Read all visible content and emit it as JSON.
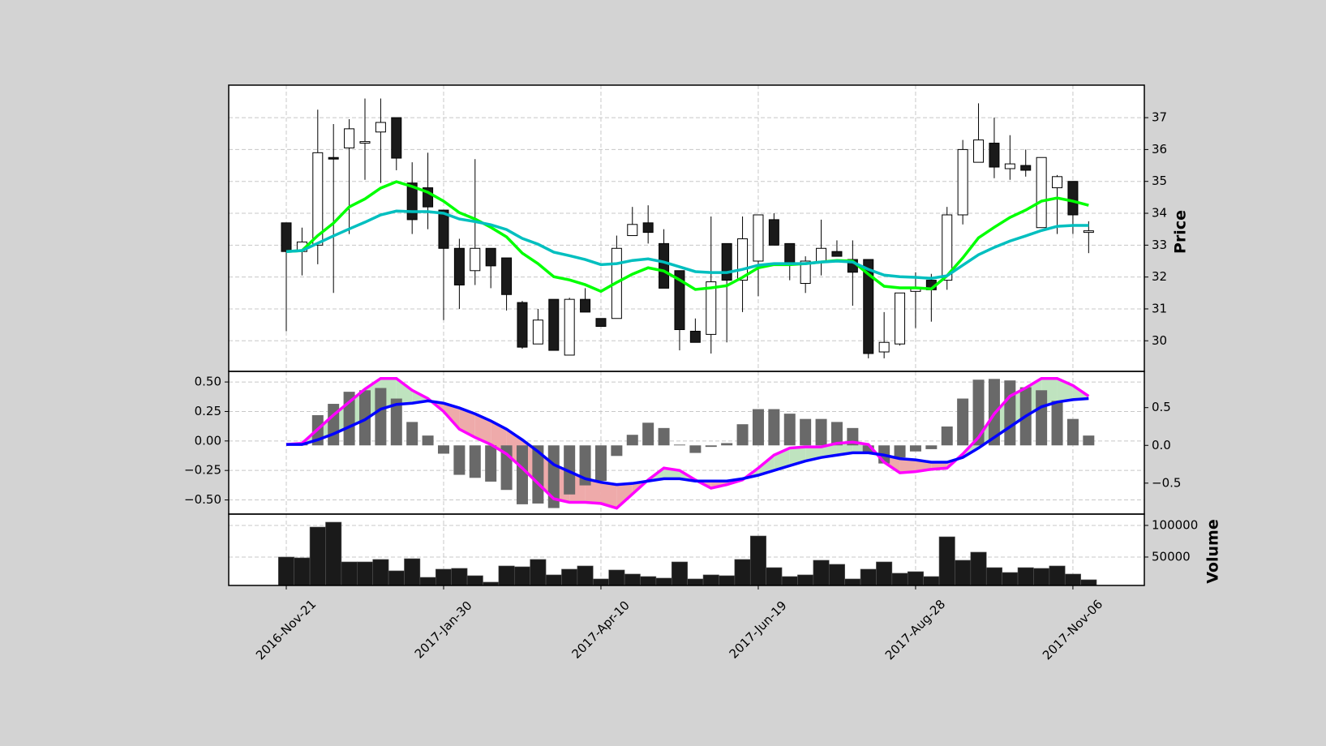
{
  "chart_data": [
    {
      "type": "candlestick",
      "ylabel": "Price",
      "open": [
        33.7,
        32.8,
        33.0,
        35.75,
        36.05,
        36.2,
        36.55,
        37.0,
        34.95,
        34.8,
        34.1,
        32.9,
        32.2,
        32.9,
        32.6,
        31.2,
        29.9,
        31.3,
        29.55,
        31.3,
        30.7,
        30.7,
        33.3,
        33.7,
        33.05,
        32.2,
        30.3,
        30.2,
        33.05,
        31.9,
        32.5,
        33.8,
        33.05,
        31.8,
        32.45,
        32.8,
        32.55,
        32.55,
        29.65,
        29.9,
        31.55,
        31.9,
        31.9,
        33.95,
        35.6,
        36.2,
        35.4,
        35.5,
        33.55,
        34.8,
        35.0,
        33.4
      ],
      "high": [
        33.7,
        33.55,
        37.25,
        36.8,
        36.95,
        37.6,
        37.6,
        37.0,
        35.6,
        35.9,
        34.1,
        33.2,
        35.7,
        32.9,
        32.6,
        31.25,
        31.0,
        31.3,
        31.35,
        31.65,
        30.7,
        33.3,
        34.2,
        34.25,
        33.5,
        32.2,
        30.7,
        33.9,
        33.05,
        33.9,
        33.95,
        34.0,
        33.05,
        32.65,
        33.8,
        33.15,
        33.15,
        32.55,
        30.9,
        31.5,
        32.15,
        32.1,
        34.2,
        36.3,
        37.45,
        37.0,
        36.45,
        36.0,
        35.75,
        35.2,
        35.0,
        33.75
      ],
      "low": [
        30.3,
        32.05,
        32.4,
        31.5,
        33.35,
        35.05,
        34.95,
        35.35,
        33.35,
        33.5,
        30.65,
        31.0,
        31.75,
        31.65,
        30.95,
        29.75,
        29.9,
        29.7,
        29.55,
        30.9,
        30.45,
        30.7,
        33.3,
        33.05,
        31.65,
        29.7,
        29.95,
        29.6,
        29.95,
        30.9,
        31.4,
        33.0,
        31.9,
        31.5,
        32.05,
        32.65,
        31.1,
        29.45,
        29.45,
        29.85,
        30.4,
        30.6,
        31.6,
        33.65,
        35.6,
        35.1,
        35.05,
        35.15,
        33.55,
        33.35,
        33.35,
        32.75
      ],
      "close": [
        32.8,
        33.1,
        35.9,
        35.7,
        36.65,
        36.25,
        36.85,
        35.73,
        33.8,
        34.2,
        32.9,
        31.75,
        32.9,
        32.35,
        31.45,
        29.8,
        30.65,
        29.7,
        31.3,
        30.9,
        30.45,
        32.9,
        33.65,
        33.4,
        31.65,
        30.35,
        29.95,
        31.85,
        31.9,
        33.2,
        33.95,
        33.0,
        32.45,
        32.5,
        32.9,
        32.65,
        32.15,
        29.6,
        29.95,
        31.5,
        31.65,
        31.6,
        33.95,
        36.0,
        36.3,
        35.45,
        35.55,
        35.35,
        35.75,
        35.15,
        33.95,
        33.45
      ],
      "up_color": "#ffffff",
      "down_color": "#1a1a1a",
      "moving_averages": [
        {
          "color": "#00ff00",
          "values": [
            32.8,
            32.83,
            33.3,
            33.69,
            34.2,
            34.45,
            34.79,
            34.99,
            34.84,
            34.66,
            34.38,
            34.02,
            33.82,
            33.56,
            33.26,
            32.75,
            32.42,
            32.01,
            31.91,
            31.76,
            31.55,
            31.83,
            32.09,
            32.29,
            32.19,
            31.91,
            31.61,
            31.66,
            31.73,
            31.99,
            32.29,
            32.39,
            32.39,
            32.42,
            32.47,
            32.52,
            32.5,
            32.09,
            31.71,
            31.66,
            31.66,
            31.63,
            32.04,
            32.6,
            33.23,
            33.56,
            33.87,
            34.1,
            34.38,
            34.48,
            34.38,
            34.25
          ]
        },
        {
          "color": "#00bfbf",
          "values": [
            32.8,
            32.83,
            33.06,
            33.29,
            33.51,
            33.72,
            33.95,
            34.07,
            34.05,
            34.05,
            34.0,
            33.82,
            33.74,
            33.64,
            33.49,
            33.21,
            33.03,
            32.78,
            32.67,
            32.55,
            32.39,
            32.42,
            32.52,
            32.57,
            32.47,
            32.32,
            32.17,
            32.14,
            32.14,
            32.24,
            32.37,
            32.42,
            32.42,
            32.42,
            32.47,
            32.5,
            32.47,
            32.24,
            32.06,
            32.01,
            31.99,
            31.96,
            32.04,
            32.37,
            32.7,
            32.93,
            33.13,
            33.29,
            33.46,
            33.59,
            33.62,
            33.62
          ]
        }
      ],
      "xlim": [
        -3.66,
        54.54
      ],
      "xticks": [
        0,
        10,
        20,
        30,
        40,
        50
      ],
      "ylim": [
        29.04,
        38.02
      ],
      "yticks": [
        30,
        31,
        32,
        33,
        34,
        35,
        36,
        37
      ],
      "grid": true
    },
    {
      "type": "macd",
      "series": [
        {
          "color": "#ff00ff",
          "values": [
            -0.03,
            -0.02,
            0.1,
            0.22,
            0.33,
            0.44,
            0.53,
            0.53,
            0.43,
            0.36,
            0.25,
            0.1,
            0.03,
            -0.03,
            -0.11,
            -0.23,
            -0.36,
            -0.49,
            -0.52,
            -0.52,
            -0.53,
            -0.57,
            -0.45,
            -0.33,
            -0.23,
            -0.25,
            -0.33,
            -0.4,
            -0.37,
            -0.33,
            -0.23,
            -0.12,
            -0.06,
            -0.05,
            -0.05,
            -0.02,
            -0.01,
            -0.03,
            -0.18,
            -0.27,
            -0.26,
            -0.24,
            -0.23,
            -0.11,
            0.03,
            0.23,
            0.38,
            0.45,
            0.53,
            0.53,
            0.47,
            0.38
          ]
        },
        {
          "color": "#0000ff",
          "values": [
            -0.03,
            -0.03,
            0.01,
            0.06,
            0.12,
            0.18,
            0.27,
            0.31,
            0.32,
            0.34,
            0.32,
            0.28,
            0.23,
            0.17,
            0.1,
            0.01,
            -0.09,
            -0.2,
            -0.26,
            -0.32,
            -0.35,
            -0.37,
            -0.36,
            -0.34,
            -0.32,
            -0.32,
            -0.34,
            -0.34,
            -0.34,
            -0.32,
            -0.29,
            -0.25,
            -0.21,
            -0.17,
            -0.14,
            -0.12,
            -0.1,
            -0.1,
            -0.12,
            -0.15,
            -0.16,
            -0.18,
            -0.18,
            -0.14,
            -0.06,
            0.03,
            0.12,
            0.21,
            0.29,
            0.33,
            0.35,
            0.36
          ]
        }
      ],
      "histogram": {
        "color": "#696969",
        "axis": "y2",
        "values": [
          0,
          0.03,
          0.4,
          0.55,
          0.71,
          0.73,
          0.76,
          0.62,
          0.31,
          0.13,
          -0.11,
          -0.39,
          -0.43,
          -0.48,
          -0.59,
          -0.78,
          -0.77,
          -0.83,
          -0.65,
          -0.53,
          -0.47,
          -0.14,
          0.14,
          0.3,
          0.23,
          0.01,
          -0.1,
          -0.02,
          0.03,
          0.28,
          0.48,
          0.48,
          0.42,
          0.35,
          0.35,
          0.31,
          0.23,
          -0.1,
          -0.24,
          -0.16,
          -0.08,
          -0.05,
          0.25,
          0.62,
          0.87,
          0.88,
          0.86,
          0.77,
          0.73,
          0.59,
          0.35,
          0.13
        ]
      },
      "fill_colors": [
        "#bfe3bf",
        "#eeaaaa"
      ],
      "xlim": [
        -3.66,
        54.54
      ],
      "xticks": [
        0,
        10,
        20,
        30,
        40,
        50
      ],
      "ylim": [
        -0.62,
        0.59
      ],
      "yticks": [
        {
          "value": -0.5,
          "label": "−0.50"
        },
        {
          "value": -0.25,
          "label": "−0.25"
        },
        {
          "value": 0,
          "label": "0.00"
        },
        {
          "value": 0.25,
          "label": "0.25"
        },
        {
          "value": 0.5,
          "label": "0.50"
        }
      ],
      "y2lim": [
        -0.91,
        0.98
      ],
      "y2ticks": [
        {
          "value": -0.5,
          "label": "−0.5"
        },
        {
          "value": 0,
          "label": "0.0"
        },
        {
          "value": 0.5,
          "label": "0.5"
        }
      ],
      "grid": true
    },
    {
      "type": "bar",
      "ylabel": "Volume",
      "color": "#1a1a1a",
      "values": [
        50000,
        48700,
        97400,
        105100,
        42300,
        42300,
        46200,
        28200,
        47400,
        17900,
        30800,
        32100,
        20500,
        10300,
        35900,
        34600,
        46200,
        21800,
        30800,
        35900,
        15400,
        29500,
        23100,
        19200,
        16700,
        42300,
        15400,
        21800,
        20500,
        46200,
        83300,
        33300,
        19200,
        21800,
        44900,
        38500,
        15400,
        30800,
        42300,
        24400,
        26900,
        19200,
        82000,
        44900,
        57700,
        33300,
        25600,
        33300,
        32100,
        35900,
        23100,
        14100
      ],
      "xlim": [
        -3.66,
        54.54
      ],
      "xticks": [
        {
          "value": 0,
          "label": "2016-Nov-21"
        },
        {
          "value": 10,
          "label": "2017-Jan-30"
        },
        {
          "value": 20,
          "label": "2017-Apr-10"
        },
        {
          "value": 30,
          "label": "2017-Jun-19"
        },
        {
          "value": 40,
          "label": "2017-Aug-28"
        },
        {
          "value": 50,
          "label": "2017-Nov-06"
        }
      ],
      "ylim": [
        5100,
        117900
      ],
      "yticks": [
        50000,
        100000
      ],
      "grid": true
    }
  ]
}
